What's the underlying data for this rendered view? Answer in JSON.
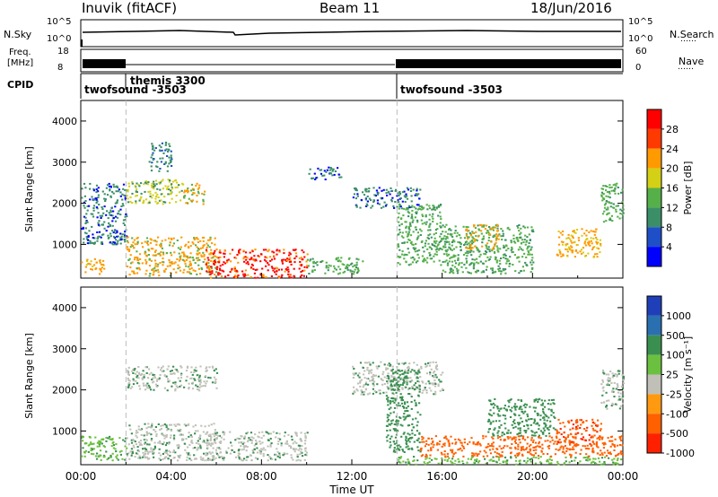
{
  "header": {
    "station": "Inuvik (fitACF)",
    "beam": "Beam 11",
    "date": "18/Jun/2016"
  },
  "summary": {
    "nsky_label": "N.Sky",
    "nsky_ticks": [
      "10^5",
      "10^0"
    ],
    "nsearch_label": "N.Search",
    "freq_label_1": "Freq.",
    "freq_label_2": "[MHz]",
    "freq_ticks": [
      "18",
      "8"
    ],
    "nave_label": "Nave",
    "nave_ticks": [
      "60",
      "0"
    ],
    "cpid_label": "CPID",
    "cpid_entries": [
      {
        "text": "twofsound -3503",
        "start_hour": 0
      },
      {
        "text": "themis 3300",
        "start_hour": 2
      },
      {
        "text": "twofsound -3503",
        "start_hour": 14
      }
    ]
  },
  "chart_data": [
    {
      "type": "heatmap",
      "name": "power",
      "xlabel": "",
      "ylabel": "Slant Range [km]",
      "xlim": [
        0,
        24
      ],
      "ylim": [
        180,
        4500
      ],
      "yticks": [
        "1000",
        "2000",
        "3000",
        "4000"
      ],
      "colorbar": {
        "label": "Power [dB]",
        "ticks": [
          "4",
          "8",
          "12",
          "16",
          "20",
          "24",
          "28"
        ],
        "colors": [
          "#0000ff",
          "#1f4fc8",
          "#3b8f68",
          "#56b04a",
          "#d4d016",
          "#ff9a00",
          "#ff3a00",
          "#ff0000"
        ]
      },
      "regions": [
        {
          "t": [
            0,
            1
          ],
          "r": [
            300,
            700
          ],
          "value": 22
        },
        {
          "t": [
            2,
            6
          ],
          "r": [
            250,
            1200
          ],
          "value": 20
        },
        {
          "t": [
            5.5,
            10
          ],
          "r": [
            200,
            900
          ],
          "value": 28
        },
        {
          "t": [
            10,
            12.5
          ],
          "r": [
            300,
            700
          ],
          "value": 14
        },
        {
          "t": [
            0,
            2
          ],
          "r": [
            1000,
            2500
          ],
          "value": 8
        },
        {
          "t": [
            2,
            4.5
          ],
          "r": [
            2000,
            2600
          ],
          "value": 16
        },
        {
          "t": [
            4.5,
            5.5
          ],
          "r": [
            2000,
            2500
          ],
          "value": 20
        },
        {
          "t": [
            3,
            4
          ],
          "r": [
            2800,
            3500
          ],
          "value": 10
        },
        {
          "t": [
            10,
            11.5
          ],
          "r": [
            2600,
            2900
          ],
          "value": 8
        },
        {
          "t": [
            12,
            15
          ],
          "r": [
            1900,
            2400
          ],
          "value": 8
        },
        {
          "t": [
            14,
            16
          ],
          "r": [
            500,
            2000
          ],
          "value": 14
        },
        {
          "t": [
            16,
            20
          ],
          "r": [
            300,
            1500
          ],
          "value": 14
        },
        {
          "t": [
            17,
            18.5
          ],
          "r": [
            900,
            1500
          ],
          "value": 20
        },
        {
          "t": [
            21,
            23
          ],
          "r": [
            700,
            1400
          ],
          "value": 22
        },
        {
          "t": [
            23,
            24
          ],
          "r": [
            1500,
            2500
          ],
          "value": 14
        }
      ]
    },
    {
      "type": "heatmap",
      "name": "velocity",
      "xlabel": "Time UT",
      "ylabel": "Slant Range [km]",
      "xlim": [
        0,
        24
      ],
      "ylim": [
        180,
        4500
      ],
      "xticks": [
        "00:00",
        "04:00",
        "08:00",
        "12:00",
        "16:00",
        "20:00",
        "00:00"
      ],
      "yticks": [
        "1000",
        "2000",
        "3000",
        "4000"
      ],
      "colorbar": {
        "label": "Velocity [m s⁻¹]",
        "ticks": [
          "1000",
          "500",
          "100",
          "25",
          "-25",
          "-100",
          "-500",
          "-1000"
        ],
        "colors": [
          "#1f3fb8",
          "#2a6fb0",
          "#3a8f50",
          "#6cc040",
          "#c0c0b8",
          "#ff9a10",
          "#ff6000",
          "#ff2000"
        ]
      },
      "regions": [
        {
          "t": [
            0,
            2
          ],
          "r": [
            300,
            900
          ],
          "value": 50
        },
        {
          "t": [
            2,
            6
          ],
          "r": [
            300,
            1200
          ],
          "value": 0
        },
        {
          "t": [
            5.5,
            10
          ],
          "r": [
            300,
            1000
          ],
          "value": 0
        },
        {
          "t": [
            2,
            6
          ],
          "r": [
            2000,
            2600
          ],
          "value": 0
        },
        {
          "t": [
            12,
            16
          ],
          "r": [
            1900,
            2700
          ],
          "value": 0
        },
        {
          "t": [
            13.5,
            15
          ],
          "r": [
            500,
            2500
          ],
          "value": 200
        },
        {
          "t": [
            14,
            24
          ],
          "r": [
            200,
            400
          ],
          "value": 60
        },
        {
          "t": [
            15,
            24
          ],
          "r": [
            400,
            900
          ],
          "value": -300
        },
        {
          "t": [
            18,
            21
          ],
          "r": [
            900,
            1800
          ],
          "value": 300
        },
        {
          "t": [
            21,
            23
          ],
          "r": [
            700,
            1300
          ],
          "value": -400
        },
        {
          "t": [
            23,
            24
          ],
          "r": [
            1500,
            2500
          ],
          "value": 0
        }
      ]
    }
  ]
}
